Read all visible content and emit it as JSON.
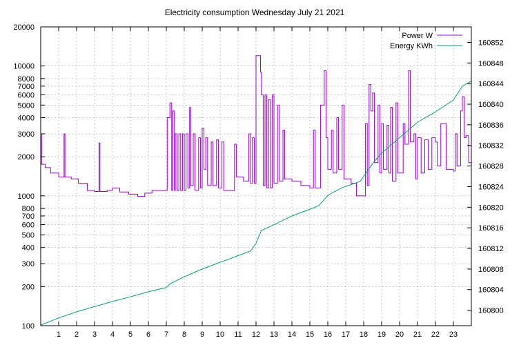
{
  "chart_data": {
    "type": "line",
    "title": "Electricity consumption Wednesday July 21 2021",
    "xlabel": "",
    "ylabel": "",
    "y2label": "",
    "x_range": [
      0,
      24
    ],
    "y_range": [
      100,
      20000
    ],
    "y_scale": "log",
    "y2_range": [
      160797,
      160855
    ],
    "grid": true,
    "legend_position": "top-right",
    "x_ticks": [
      "1",
      "2",
      "3",
      "4",
      "5",
      "6",
      "7",
      "8",
      "9",
      "10",
      "11",
      "12",
      "13",
      "14",
      "15",
      "16",
      "17",
      "18",
      "19",
      "20",
      "21",
      "22",
      "23"
    ],
    "y_ticks": [
      {
        "value": 100,
        "label": "100"
      },
      {
        "value": 200,
        "label": "200"
      },
      {
        "value": 300,
        "label": "300"
      },
      {
        "value": 400,
        "label": "400"
      },
      {
        "value": 500,
        "label": "500"
      },
      {
        "value": 600,
        "label": "600"
      },
      {
        "value": 700,
        "label": "700"
      },
      {
        "value": 800,
        "label": "800"
      },
      {
        "value": 1000,
        "label": "1000"
      },
      {
        "value": 2000,
        "label": "2000"
      },
      {
        "value": 3000,
        "label": "3000"
      },
      {
        "value": 4000,
        "label": "4000"
      },
      {
        "value": 5000,
        "label": "5000"
      },
      {
        "value": 6000,
        "label": "6000"
      },
      {
        "value": 7000,
        "label": "7000"
      },
      {
        "value": 8000,
        "label": "8000"
      },
      {
        "value": 10000,
        "label": "10000"
      },
      {
        "value": 20000,
        "label": "20000"
      }
    ],
    "y2_ticks": [
      "160800",
      "160804",
      "160808",
      "160812",
      "160816",
      "160820",
      "160824",
      "160828",
      "160832",
      "160836",
      "160840",
      "160844",
      "160848",
      "160852"
    ],
    "series": [
      {
        "name": "Power W",
        "color": "#9400d3",
        "axis": "y1",
        "points": [
          [
            0.0,
            3000
          ],
          [
            0.05,
            1750
          ],
          [
            0.25,
            1650
          ],
          [
            0.55,
            1500
          ],
          [
            1.0,
            1400
          ],
          [
            1.3,
            3000
          ],
          [
            1.35,
            1400
          ],
          [
            1.7,
            1350
          ],
          [
            2.1,
            1250
          ],
          [
            2.6,
            1100
          ],
          [
            3.0,
            1080
          ],
          [
            3.25,
            2550
          ],
          [
            3.3,
            1080
          ],
          [
            3.7,
            1100
          ],
          [
            4.0,
            1150
          ],
          [
            4.4,
            1070
          ],
          [
            4.9,
            1030
          ],
          [
            5.4,
            990
          ],
          [
            5.8,
            1050
          ],
          [
            6.2,
            1100
          ],
          [
            6.8,
            1100
          ],
          [
            7.05,
            4000
          ],
          [
            7.2,
            5200
          ],
          [
            7.3,
            1100
          ],
          [
            7.35,
            4500
          ],
          [
            7.45,
            1100
          ],
          [
            7.5,
            3000
          ],
          [
            7.6,
            1100
          ],
          [
            7.7,
            3000
          ],
          [
            7.8,
            1100
          ],
          [
            7.9,
            3000
          ],
          [
            8.0,
            1100
          ],
          [
            8.1,
            3000
          ],
          [
            8.2,
            1150
          ],
          [
            8.3,
            4800
          ],
          [
            8.35,
            1200
          ],
          [
            8.5,
            3000
          ],
          [
            8.6,
            1100
          ],
          [
            8.8,
            2800
          ],
          [
            8.9,
            1150
          ],
          [
            9.0,
            3300
          ],
          [
            9.1,
            1600
          ],
          [
            9.2,
            2800
          ],
          [
            9.3,
            1200
          ],
          [
            9.5,
            2600
          ],
          [
            9.6,
            1200
          ],
          [
            9.8,
            2700
          ],
          [
            9.9,
            1150
          ],
          [
            10.1,
            2600
          ],
          [
            10.2,
            1100
          ],
          [
            10.5,
            1100
          ],
          [
            10.8,
            2500
          ],
          [
            10.9,
            1400
          ],
          [
            11.3,
            1300
          ],
          [
            11.6,
            3000
          ],
          [
            11.7,
            1250
          ],
          [
            11.8,
            2800
          ],
          [
            11.9,
            1250
          ],
          [
            12.0,
            12000
          ],
          [
            12.25,
            9000
          ],
          [
            12.3,
            6000
          ],
          [
            12.4,
            1200
          ],
          [
            12.5,
            6000
          ],
          [
            12.6,
            1150
          ],
          [
            12.7,
            5500
          ],
          [
            12.8,
            1150
          ],
          [
            12.9,
            6000
          ],
          [
            13.0,
            1250
          ],
          [
            13.2,
            5000
          ],
          [
            13.3,
            1300
          ],
          [
            13.5,
            3200
          ],
          [
            13.6,
            1350
          ],
          [
            14.0,
            1300
          ],
          [
            14.5,
            1200
          ],
          [
            15.0,
            1150
          ],
          [
            15.2,
            3200
          ],
          [
            15.3,
            1150
          ],
          [
            15.6,
            5000
          ],
          [
            15.8,
            9200
          ],
          [
            15.9,
            2800
          ],
          [
            16.0,
            1600
          ],
          [
            16.2,
            3200
          ],
          [
            16.3,
            1500
          ],
          [
            16.5,
            4000
          ],
          [
            16.6,
            1600
          ],
          [
            16.8,
            5000
          ],
          [
            16.9,
            1350
          ],
          [
            17.3,
            1250
          ],
          [
            17.6,
            1000
          ],
          [
            18.0,
            1000
          ],
          [
            18.1,
            3600
          ],
          [
            18.2,
            1200
          ],
          [
            18.3,
            7200
          ],
          [
            18.4,
            4500
          ],
          [
            18.5,
            6200
          ],
          [
            18.6,
            1800
          ],
          [
            18.8,
            5000
          ],
          [
            18.9,
            1500
          ],
          [
            19.0,
            3600
          ],
          [
            19.1,
            1600
          ],
          [
            19.3,
            3500
          ],
          [
            19.4,
            1500
          ],
          [
            19.5,
            4800
          ],
          [
            19.6,
            1300
          ],
          [
            19.8,
            5200
          ],
          [
            19.9,
            1500
          ],
          [
            20.2,
            3600
          ],
          [
            20.3,
            2500
          ],
          [
            20.5,
            9200
          ],
          [
            20.6,
            2600
          ],
          [
            20.8,
            3000
          ],
          [
            20.9,
            1350
          ],
          [
            21.0,
            2800
          ],
          [
            21.2,
            1500
          ],
          [
            21.4,
            2700
          ],
          [
            21.6,
            1600
          ],
          [
            21.8,
            2800
          ],
          [
            22.0,
            2600
          ],
          [
            22.1,
            1700
          ],
          [
            22.3,
            3600
          ],
          [
            22.5,
            3600
          ],
          [
            22.6,
            1600
          ],
          [
            23.0,
            1550
          ],
          [
            23.1,
            3000
          ],
          [
            23.2,
            1700
          ],
          [
            23.4,
            4500
          ],
          [
            23.5,
            5800
          ],
          [
            23.6,
            2800
          ],
          [
            23.7,
            2900
          ],
          [
            23.85,
            1800
          ],
          [
            24.0,
            1800
          ]
        ]
      },
      {
        "name": "Energy KWh",
        "color": "#009e73",
        "axis": "y2",
        "points": [
          [
            0.0,
            160797.1
          ],
          [
            1.0,
            160798.5
          ],
          [
            2.0,
            160799.7
          ],
          [
            3.0,
            160800.7
          ],
          [
            4.0,
            160801.7
          ],
          [
            5.0,
            160802.6
          ],
          [
            6.0,
            160803.6
          ],
          [
            7.0,
            160804.4
          ],
          [
            7.2,
            160805.1
          ],
          [
            8.0,
            160806.5
          ],
          [
            9.0,
            160808.0
          ],
          [
            10.0,
            160809.3
          ],
          [
            11.0,
            160810.6
          ],
          [
            11.7,
            160811.5
          ],
          [
            12.0,
            160813.0
          ],
          [
            12.3,
            160815.5
          ],
          [
            13.0,
            160816.6
          ],
          [
            14.0,
            160818.3
          ],
          [
            15.0,
            160819.6
          ],
          [
            15.5,
            160820.3
          ],
          [
            16.0,
            160822.3
          ],
          [
            16.8,
            160823.8
          ],
          [
            17.8,
            160825.0
          ],
          [
            18.5,
            160828.5
          ],
          [
            19.0,
            160830.5
          ],
          [
            20.0,
            160833.5
          ],
          [
            21.0,
            160836.5
          ],
          [
            22.0,
            160838.5
          ],
          [
            23.0,
            160840.8
          ],
          [
            23.5,
            160843.5
          ],
          [
            24.0,
            160844.5
          ]
        ]
      }
    ]
  }
}
